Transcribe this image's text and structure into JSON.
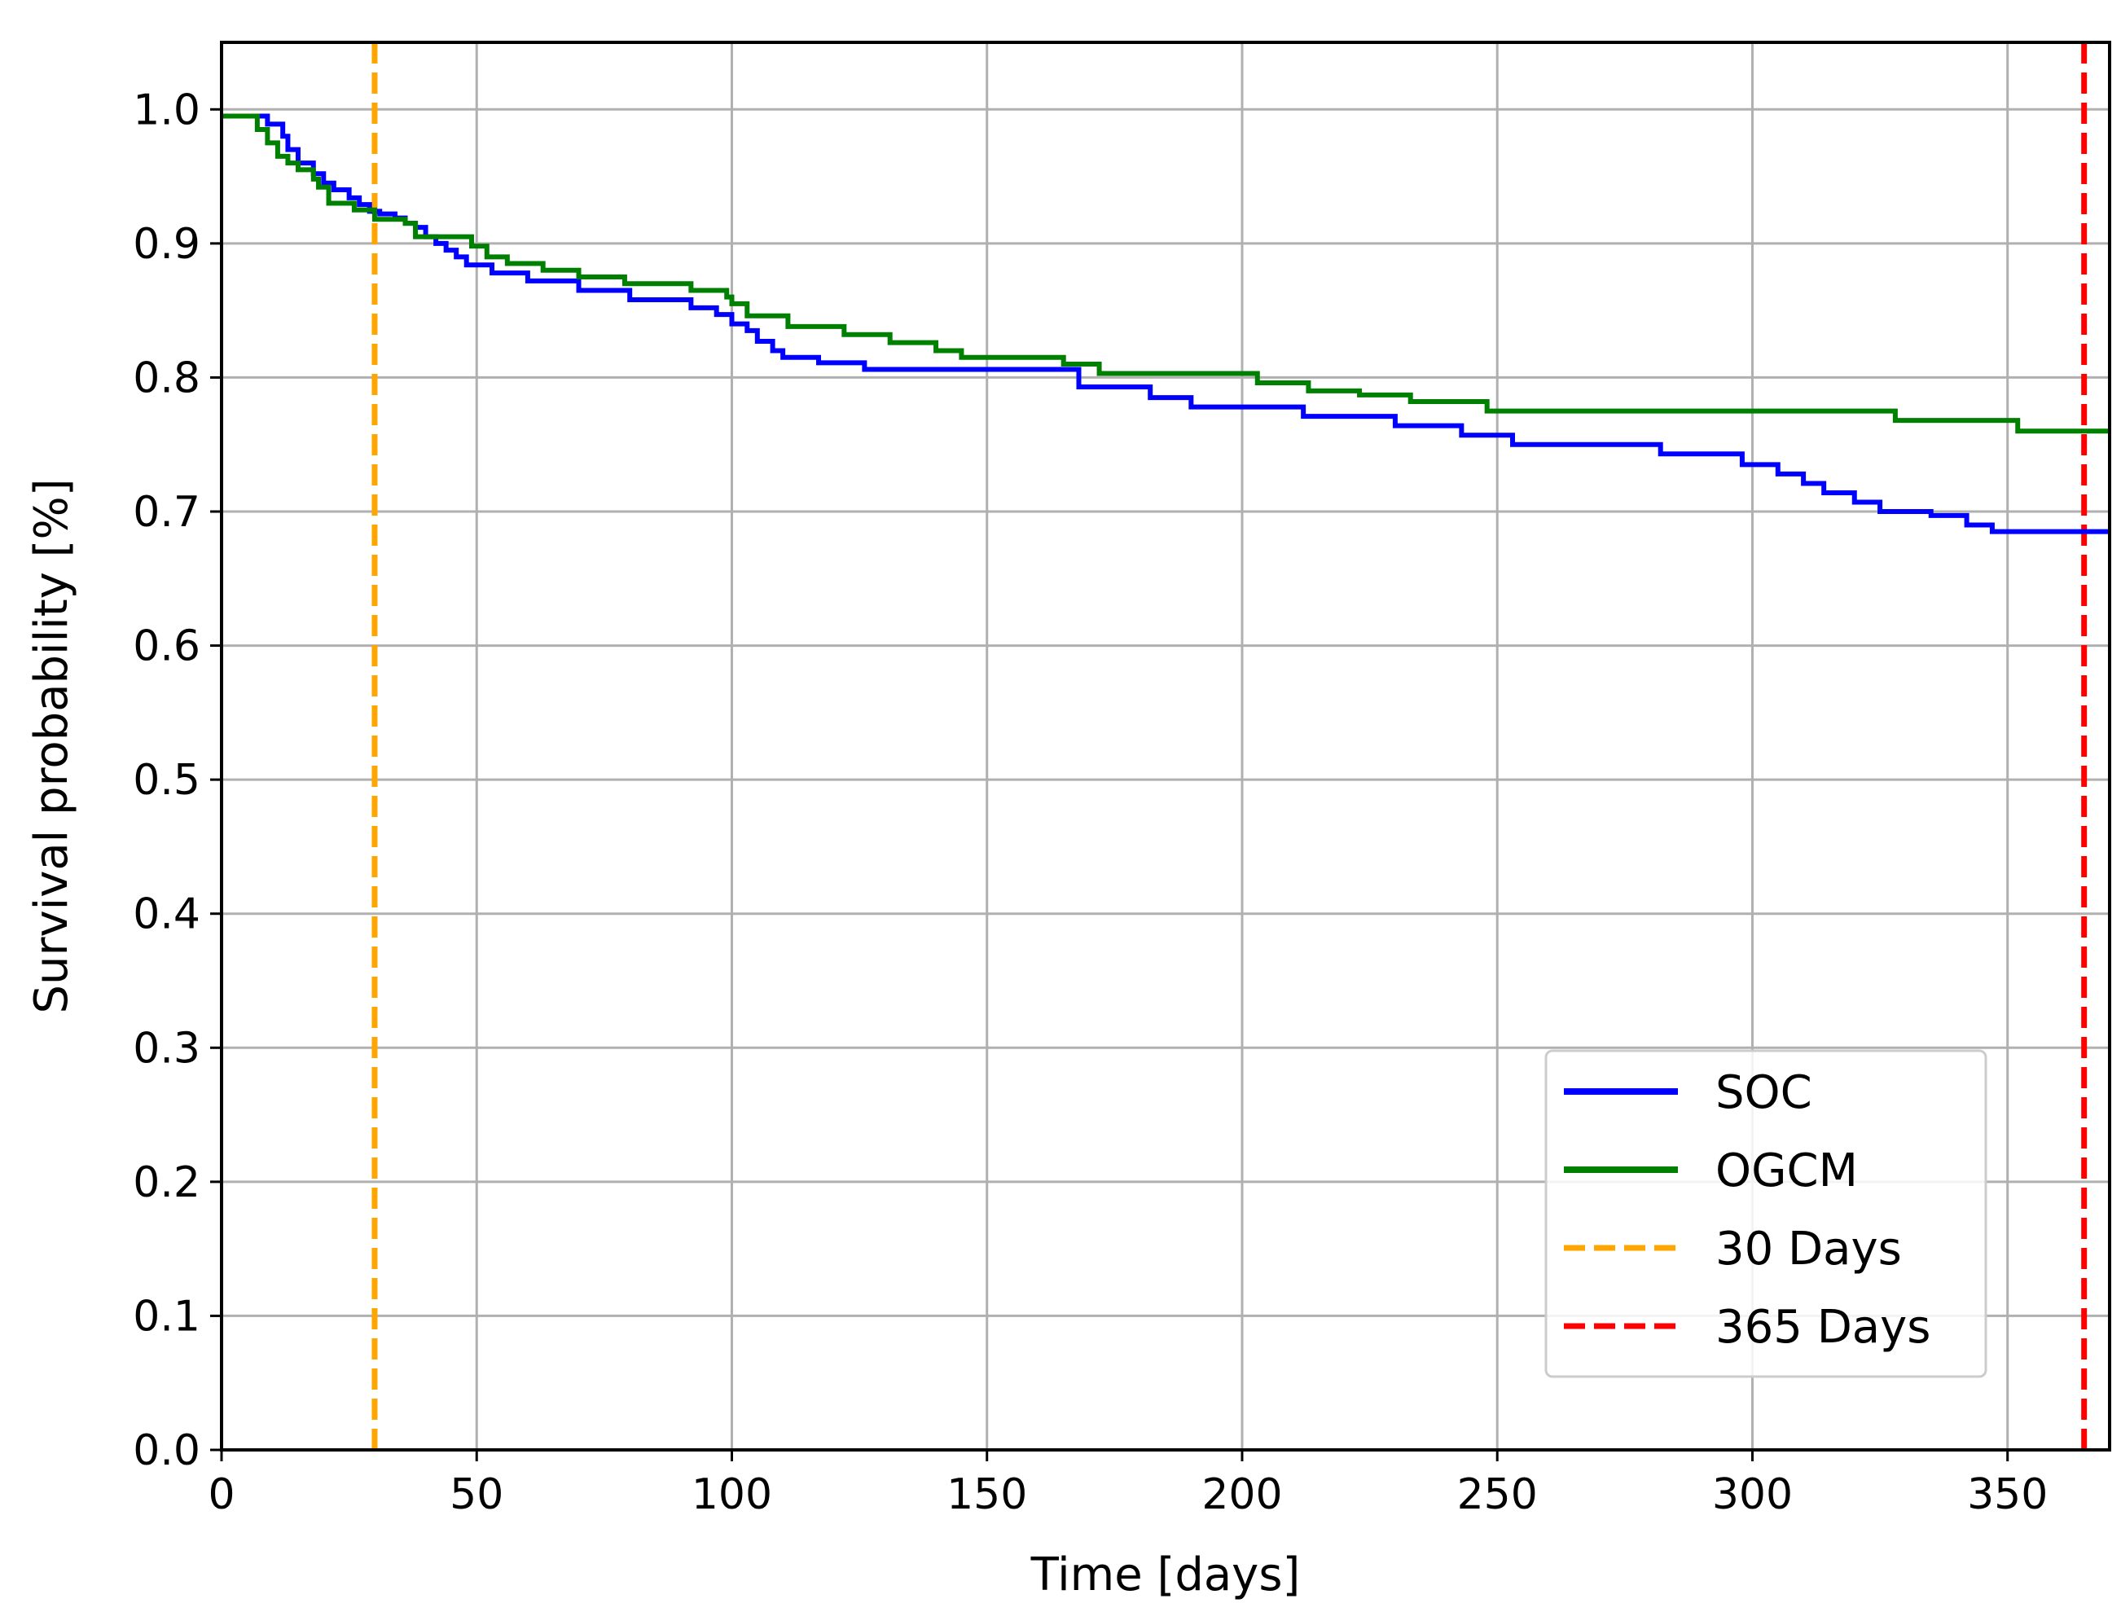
{
  "chart_data": {
    "type": "line",
    "title": "",
    "xlabel": "Time [days]",
    "ylabel": "Survival probability [%]",
    "xlim": [
      0,
      370
    ],
    "ylim": [
      0.0,
      1.05
    ],
    "xticks": [
      0,
      50,
      100,
      150,
      200,
      250,
      300,
      350
    ],
    "yticks": [
      0.0,
      0.1,
      0.2,
      0.3,
      0.4,
      0.5,
      0.6,
      0.7,
      0.8,
      0.9,
      1.0
    ],
    "grid": true,
    "legend_position": "lower-right",
    "series": [
      {
        "name": "SOC",
        "color": "#0000ff",
        "style": "step",
        "x": [
          0,
          9,
          12,
          13,
          15,
          18,
          20,
          22,
          25,
          27,
          29,
          31,
          34,
          36,
          38,
          40,
          42,
          44,
          46,
          48,
          53,
          60,
          70,
          80,
          92,
          97,
          100,
          103,
          105,
          108,
          110,
          117,
          126,
          168,
          182,
          190,
          212,
          230,
          243,
          253,
          282,
          298,
          305,
          310,
          314,
          320,
          325,
          335,
          342,
          347,
          370
        ],
        "y": [
          0.995,
          0.989,
          0.98,
          0.97,
          0.96,
          0.952,
          0.945,
          0.94,
          0.934,
          0.929,
          0.924,
          0.922,
          0.919,
          0.915,
          0.912,
          0.905,
          0.9,
          0.895,
          0.89,
          0.884,
          0.878,
          0.872,
          0.865,
          0.858,
          0.852,
          0.847,
          0.84,
          0.835,
          0.827,
          0.82,
          0.815,
          0.811,
          0.806,
          0.793,
          0.785,
          0.778,
          0.771,
          0.764,
          0.757,
          0.75,
          0.743,
          0.735,
          0.728,
          0.721,
          0.714,
          0.707,
          0.7,
          0.697,
          0.69,
          0.685,
          0.685
        ]
      },
      {
        "name": "OGCM",
        "color": "#008000",
        "style": "step",
        "x": [
          0,
          7,
          9,
          11,
          13,
          15,
          18,
          19,
          21,
          26,
          30,
          36,
          38,
          49,
          52,
          56,
          63,
          70,
          79,
          92,
          99,
          100,
          103,
          111,
          122,
          131,
          140,
          145,
          165,
          172,
          203,
          213,
          223,
          233,
          248,
          290,
          300,
          315,
          328,
          352,
          370
        ],
        "y": [
          0.995,
          0.985,
          0.975,
          0.965,
          0.96,
          0.955,
          0.948,
          0.942,
          0.93,
          0.925,
          0.918,
          0.915,
          0.905,
          0.898,
          0.89,
          0.885,
          0.88,
          0.875,
          0.87,
          0.865,
          0.86,
          0.855,
          0.846,
          0.838,
          0.832,
          0.826,
          0.82,
          0.815,
          0.81,
          0.803,
          0.796,
          0.79,
          0.787,
          0.782,
          0.775,
          0.775,
          0.775,
          0.775,
          0.768,
          0.76,
          0.76
        ]
      }
    ],
    "reference_lines": [
      {
        "name": "30 Days",
        "x": 30,
        "color": "#ffa500",
        "style": "dashed"
      },
      {
        "name": "365 Days",
        "x": 365,
        "color": "#ff0000",
        "style": "dashed"
      }
    ]
  }
}
